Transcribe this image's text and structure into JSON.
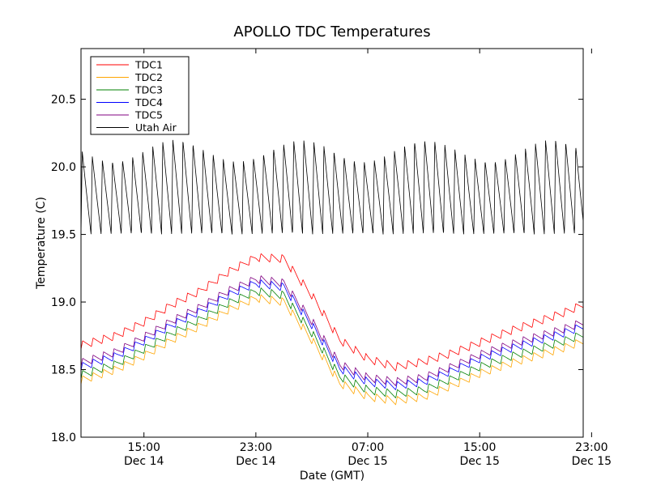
{
  "chart_data": {
    "type": "line",
    "title": "APOLLO TDC Temperatures",
    "xlabel": "Date (GMT)",
    "ylabel": "Temperature (C)",
    "xlim_hours": [
      -4.5,
      31.4
    ],
    "ylim": [
      18.0,
      20.875
    ],
    "yticks": [
      {
        "value": 18.0,
        "label": "18.0"
      },
      {
        "value": 18.5,
        "label": "18.5"
      },
      {
        "value": 19.0,
        "label": "19.0"
      },
      {
        "value": 19.5,
        "label": "19.5"
      },
      {
        "value": 20.0,
        "label": "20.0"
      },
      {
        "value": 20.5,
        "label": "20.5"
      }
    ],
    "xticks": [
      {
        "hour": 0,
        "time": "15:00",
        "date": "Dec 14"
      },
      {
        "hour": 8,
        "time": "23:00",
        "date": "Dec 14"
      },
      {
        "hour": 16,
        "time": "07:00",
        "date": "Dec 15"
      },
      {
        "hour": 24,
        "time": "15:00",
        "date": "Dec 15"
      },
      {
        "hour": 32,
        "time": "23:00",
        "date": "Dec 15"
      }
    ],
    "legend_position": "top-left",
    "x_hours": [
      -4.5,
      -2,
      0,
      2,
      4,
      6,
      8,
      10,
      12,
      14,
      16,
      18,
      20,
      22,
      24,
      26,
      28,
      30,
      31.4
    ],
    "series": [
      {
        "name": "TDC1",
        "color": "#ff0000",
        "values": [
          18.68,
          18.75,
          18.85,
          18.98,
          19.08,
          19.22,
          19.33,
          19.32,
          19.05,
          18.72,
          18.58,
          18.52,
          18.56,
          18.62,
          18.7,
          18.78,
          18.85,
          18.92,
          18.98
        ]
      },
      {
        "name": "TDC2",
        "color": "#ffa500",
        "values": [
          18.42,
          18.5,
          18.6,
          18.72,
          18.82,
          18.94,
          19.03,
          19.0,
          18.72,
          18.4,
          18.3,
          18.27,
          18.3,
          18.38,
          18.47,
          18.54,
          18.6,
          18.66,
          18.71
        ]
      },
      {
        "name": "TDC3",
        "color": "#008000",
        "values": [
          18.46,
          18.54,
          18.65,
          18.77,
          18.87,
          18.99,
          19.08,
          19.05,
          18.77,
          18.45,
          18.35,
          18.32,
          18.35,
          18.43,
          18.52,
          18.59,
          18.65,
          18.71,
          18.76
        ]
      },
      {
        "name": "TDC4",
        "color": "#0000ff",
        "values": [
          18.52,
          18.6,
          18.71,
          18.83,
          18.93,
          19.05,
          19.14,
          19.11,
          18.83,
          18.51,
          18.41,
          18.38,
          18.41,
          18.49,
          18.58,
          18.65,
          18.71,
          18.77,
          18.82
        ]
      },
      {
        "name": "TDC5",
        "color": "#800080",
        "values": [
          18.55,
          18.63,
          18.74,
          18.86,
          18.96,
          19.08,
          19.17,
          19.14,
          18.86,
          18.54,
          18.44,
          18.41,
          18.44,
          18.52,
          18.61,
          18.68,
          18.74,
          18.8,
          18.85
        ]
      },
      {
        "name": "Utah Air",
        "color": "#000000",
        "values": [
          19.75,
          19.8,
          19.82,
          19.85,
          19.86,
          19.8,
          19.82,
          19.85,
          19.8,
          19.8,
          19.82,
          19.8,
          19.82,
          19.82,
          19.83,
          19.85,
          19.86,
          19.88,
          19.85
        ]
      }
    ]
  }
}
